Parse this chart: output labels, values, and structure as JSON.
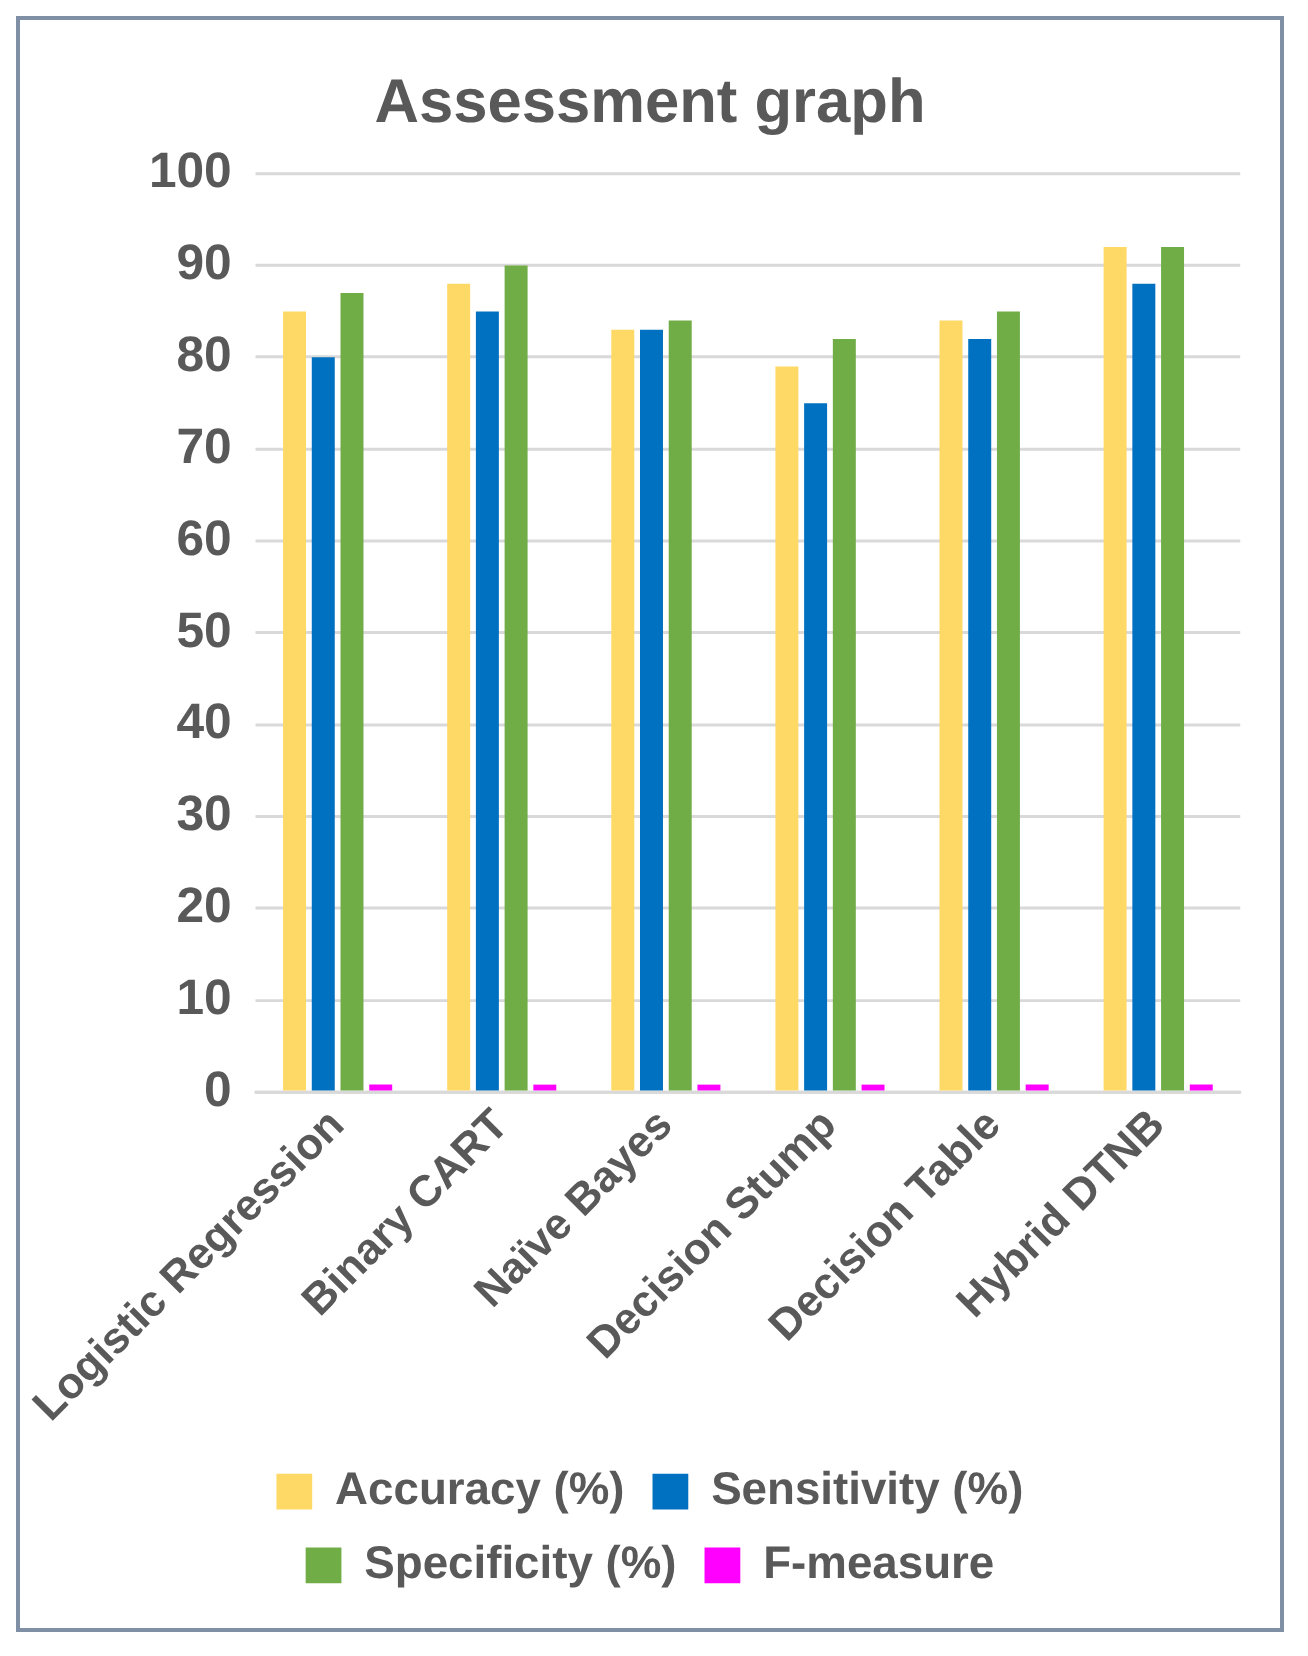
{
  "chart_data": {
    "type": "bar",
    "title": "Assessment graph",
    "categories": [
      "Logistic Regression",
      "Binary CART",
      "Naïve Bayes",
      "Decision Stump",
      "Decision Table",
      "Hybrid DTNB"
    ],
    "series": [
      {
        "name": "Accuracy (%)",
        "color": "#ffd966",
        "values": [
          85,
          88,
          83,
          79,
          84,
          92
        ]
      },
      {
        "name": "Sensitivity (%)",
        "color": "#0070c0",
        "values": [
          80,
          85,
          83,
          75,
          82,
          88
        ]
      },
      {
        "name": "Specificity (%)",
        "color": "#70ad47",
        "values": [
          87,
          90,
          84,
          82,
          85,
          92
        ]
      },
      {
        "name": "F-measure",
        "color": "#ff00ff",
        "values": [
          0.8,
          0.8,
          0.8,
          0.8,
          0.8,
          0.8
        ]
      }
    ],
    "ylim": [
      0,
      100
    ],
    "yticks": [
      0,
      10,
      20,
      30,
      40,
      50,
      60,
      70,
      80,
      90,
      100
    ],
    "grid": "y",
    "legend": "bottom"
  }
}
